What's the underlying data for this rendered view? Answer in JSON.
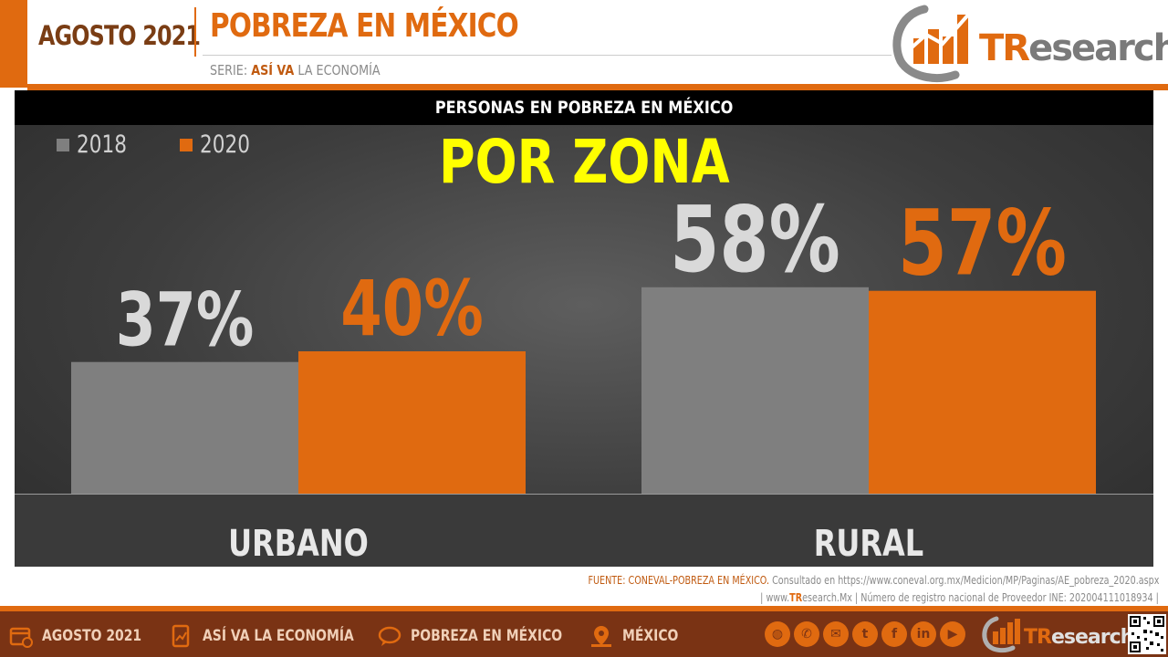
{
  "header": {
    "date": "AGOSTO 2021",
    "title": "POBREZA EN MÉXICO",
    "serie_prefix": "SERIE:",
    "serie_highlight": "ASÍ VA",
    "serie_rest": "LA ECONOMÍA",
    "logo_tr": "TR",
    "logo_rest": "esearch"
  },
  "chart_data": {
    "type": "bar",
    "title": "PERSONAS EN POBREZA EN MÉXICO",
    "subtitle": "POR ZONA",
    "categories": [
      "URBANO",
      "RURAL"
    ],
    "series": [
      {
        "name": "2018",
        "values": [
          37,
          58
        ],
        "labels": [
          "37%",
          "58%"
        ],
        "color": "#7f7f7f",
        "label_color": "#d9d9d9"
      },
      {
        "name": "2020",
        "values": [
          40,
          57
        ],
        "labels": [
          "40%",
          "57%"
        ],
        "color": "#e06a10",
        "label_color": "#e06a10"
      }
    ],
    "legend_position": "top-left",
    "grid": false,
    "ylim": [
      0,
      100
    ]
  },
  "source": {
    "label": "FUENTE:",
    "name": "CONEVAL-POBREZA EN MÉXICO.",
    "consulted": "Consultado en https://www.coneval.org.mx/Medicion/MP/Paginas/AE_pobreza_2020.aspx",
    "web_prefix": "| www.",
    "web_tr": "TR",
    "web_rest": "esearch.Mx",
    "registro": "| Número de registro nacional de Proveedor INE: 202004111018934 |"
  },
  "footer": {
    "items": [
      {
        "label": "AGOSTO 2021",
        "icon": "calendar-icon"
      },
      {
        "label": "ASÍ VA LA ECONOMÍA",
        "icon": "report-icon"
      },
      {
        "label": "POBREZA EN MÉXICO",
        "icon": "chat-icon"
      },
      {
        "label": "MÉXICO",
        "icon": "map-pin-icon"
      }
    ],
    "social": [
      "globe-icon",
      "phone-icon",
      "mail-icon",
      "twitter-icon",
      "facebook-icon",
      "linkedin-icon",
      "youtube-icon"
    ],
    "logo_tr": "TR",
    "logo_rest": "esearch"
  },
  "colors": {
    "accent": "#e06a10",
    "brown": "#7a3314",
    "yellow": "#ffff00"
  }
}
